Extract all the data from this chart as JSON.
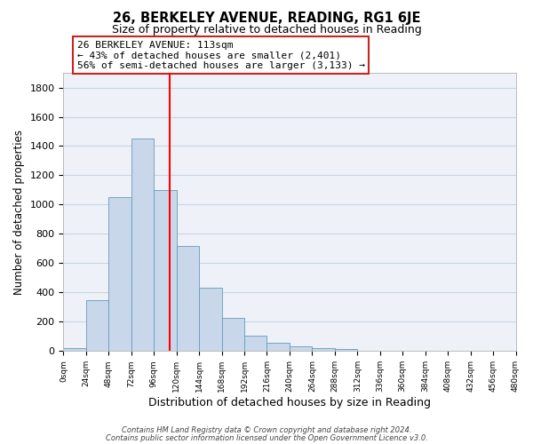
{
  "title": "26, BERKELEY AVENUE, READING, RG1 6JE",
  "subtitle": "Size of property relative to detached houses in Reading",
  "xlabel": "Distribution of detached houses by size in Reading",
  "ylabel": "Number of detached properties",
  "bar_color": "#c8d8ea",
  "bar_edgecolor": "#6699bb",
  "grid_color": "#c8d4e4",
  "background_color": "#eef2f8",
  "bin_edges": [
    0,
    24,
    48,
    72,
    96,
    120,
    144,
    168,
    192,
    216,
    240,
    264,
    288,
    312,
    336,
    360,
    384,
    408,
    432,
    456,
    480
  ],
  "bar_heights": [
    20,
    350,
    1050,
    1450,
    1100,
    720,
    435,
    225,
    105,
    55,
    35,
    20,
    15,
    5,
    3,
    2,
    2,
    2,
    2,
    2
  ],
  "red_line_x": 113,
  "annotation_lines": [
    "26 BERKELEY AVENUE: 113sqm",
    "← 43% of detached houses are smaller (2,401)",
    "56% of semi-detached houses are larger (3,133) →"
  ],
  "tick_labels": [
    "0sqm",
    "24sqm",
    "48sqm",
    "72sqm",
    "96sqm",
    "120sqm",
    "144sqm",
    "168sqm",
    "192sqm",
    "216sqm",
    "240sqm",
    "264sqm",
    "288sqm",
    "312sqm",
    "336sqm",
    "360sqm",
    "384sqm",
    "408sqm",
    "432sqm",
    "456sqm",
    "480sqm"
  ],
  "ylim": [
    0,
    1900
  ],
  "yticks": [
    0,
    200,
    400,
    600,
    800,
    1000,
    1200,
    1400,
    1600,
    1800
  ],
  "footer_line1": "Contains HM Land Registry data © Crown copyright and database right 2024.",
  "footer_line2": "Contains public sector information licensed under the Open Government Licence v3.0."
}
